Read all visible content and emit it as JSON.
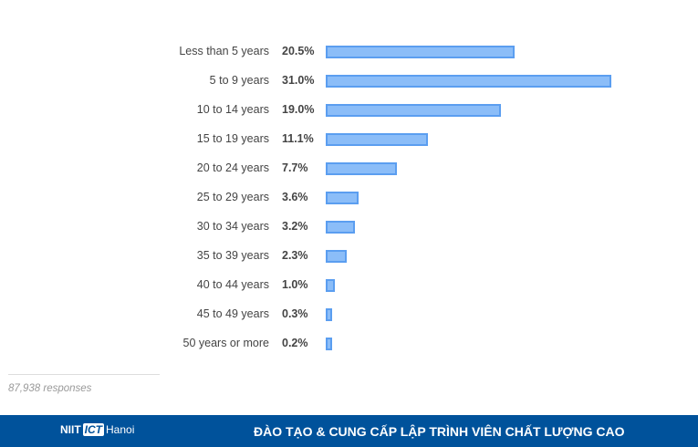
{
  "chart_data": {
    "type": "bar",
    "orientation": "horizontal",
    "categories": [
      "Less than 5 years",
      "5 to 9 years",
      "10 to 14 years",
      "15 to 19 years",
      "20 to 24 years",
      "25 to 29 years",
      "30 to 34 years",
      "35 to 39 years",
      "40 to 44 years",
      "45 to 49 years",
      "50 years or more"
    ],
    "values": [
      20.5,
      31.0,
      19.0,
      11.1,
      7.7,
      3.6,
      3.2,
      2.3,
      1.0,
      0.3,
      0.2
    ],
    "value_labels": [
      "20.5%",
      "31.0%",
      "19.0%",
      "11.1%",
      "7.7%",
      "3.6%",
      "3.2%",
      "2.3%",
      "1.0%",
      "0.3%",
      "0.2%"
    ],
    "unit": "%",
    "grid": false,
    "colors": {
      "fill": "#8bbdf8",
      "stroke": "#5b9ef0"
    }
  },
  "responses": "87,938 responses",
  "footer": {
    "logo_text": "NIIT ICT Hanoi",
    "logo_parts": [
      "NIIT",
      "ICT",
      "Hanoi"
    ],
    "slogan": "ĐÀO TẠO & CUNG CẤP LẬP TRÌNH VIÊN CHẤT LƯỢNG CAO",
    "background": "#00529b"
  }
}
